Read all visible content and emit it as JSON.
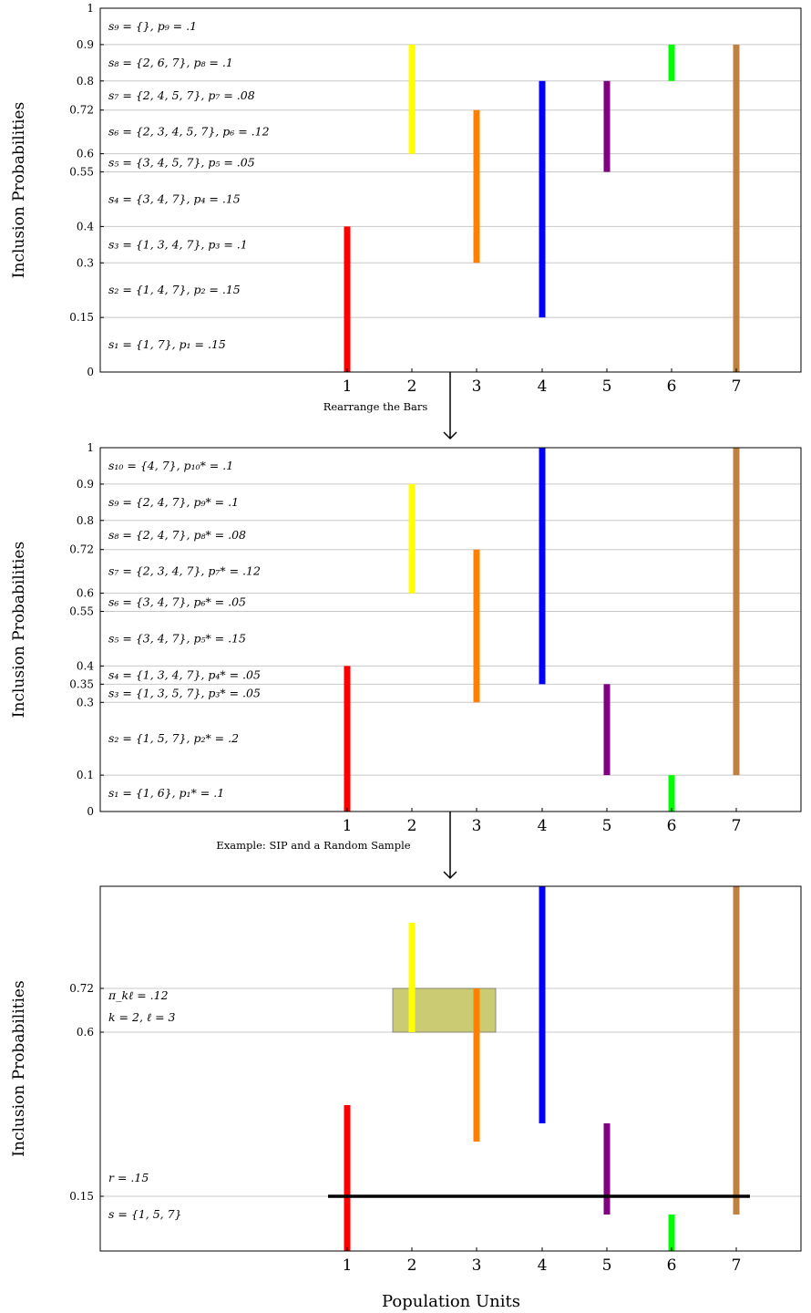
{
  "chart_data": [
    {
      "type": "bar",
      "ylabel": "Inclusion Probabilities",
      "ylim": [
        0,
        1
      ],
      "yticks": [
        0,
        0.15,
        0.3,
        0.4,
        0.55,
        0.6,
        0.72,
        0.8,
        0.9,
        1
      ],
      "ytick_labels": [
        "0",
        "0.15",
        "0.3",
        "0.4",
        "0.55",
        "0.6",
        "0.72",
        "0.8",
        "0.9",
        "1"
      ],
      "categories": [
        "1",
        "2",
        "3",
        "4",
        "5",
        "6",
        "7"
      ],
      "bars": [
        {
          "unit": "1",
          "low": 0,
          "high": 0.4,
          "color": "#ff0000"
        },
        {
          "unit": "2",
          "low": 0.6,
          "high": 0.9,
          "color": "#ffff00"
        },
        {
          "unit": "3",
          "low": 0.3,
          "high": 0.72,
          "color": "#ff8000"
        },
        {
          "unit": "4",
          "low": 0.15,
          "high": 0.8,
          "color": "#0000ff"
        },
        {
          "unit": "5",
          "low": 0.55,
          "high": 0.8,
          "color": "#800080"
        },
        {
          "unit": "6",
          "low": 0.8,
          "high": 0.9,
          "color": "#00ff00"
        },
        {
          "unit": "7",
          "low": 0,
          "high": 0.9,
          "color": "#bf8040"
        }
      ],
      "annotations": [
        {
          "y": 0.075,
          "text": "s₁ = {1, 7}, p₁ = .15"
        },
        {
          "y": 0.225,
          "text": "s₂ = {1, 4, 7}, p₂ = .15"
        },
        {
          "y": 0.35,
          "text": "s₃ = {1, 3, 4, 7}, p₃ = .1"
        },
        {
          "y": 0.475,
          "text": "s₄ = {3, 4, 7}, p₄ = .15"
        },
        {
          "y": 0.575,
          "text": "s₅ = {3, 4, 5, 7}, p₅ = .05"
        },
        {
          "y": 0.66,
          "text": "s₆ = {2, 3, 4, 5, 7}, p₆ = .12"
        },
        {
          "y": 0.76,
          "text": "s₇ = {2, 4, 5, 7}, p₇ = .08"
        },
        {
          "y": 0.85,
          "text": "s₈ = {2, 6, 7}, p₈ = .1"
        },
        {
          "y": 0.95,
          "text": "s₉ = {}, p₉ = .1"
        }
      ]
    },
    {
      "type": "bar",
      "ylabel": "Inclusion Probabilities",
      "ylim": [
        0,
        1
      ],
      "yticks": [
        0,
        0.1,
        0.3,
        0.35,
        0.4,
        0.55,
        0.6,
        0.72,
        0.8,
        0.9,
        1
      ],
      "ytick_labels": [
        "0",
        "0.1",
        "0.3",
        "0.35",
        "0.4",
        "0.55",
        "0.6",
        "0.72",
        "0.8",
        "0.9",
        "1"
      ],
      "categories": [
        "1",
        "2",
        "3",
        "4",
        "5",
        "6",
        "7"
      ],
      "bars": [
        {
          "unit": "1",
          "low": 0,
          "high": 0.4,
          "color": "#ff0000"
        },
        {
          "unit": "2",
          "low": 0.6,
          "high": 0.9,
          "color": "#ffff00"
        },
        {
          "unit": "3",
          "low": 0.3,
          "high": 0.72,
          "color": "#ff8000"
        },
        {
          "unit": "4",
          "low": 0.35,
          "high": 1,
          "color": "#0000ff"
        },
        {
          "unit": "5",
          "low": 0.1,
          "high": 0.35,
          "color": "#800080"
        },
        {
          "unit": "6",
          "low": 0,
          "high": 0.1,
          "color": "#00ff00"
        },
        {
          "unit": "7",
          "low": 0.1,
          "high": 1,
          "color": "#bf8040"
        }
      ],
      "annotations": [
        {
          "y": 0.05,
          "text": "s₁ = {1, 6}, p₁* = .1"
        },
        {
          "y": 0.2,
          "text": "s₂ = {1, 5, 7}, p₂* = .2"
        },
        {
          "y": 0.325,
          "text": "s₃ = {1, 3, 5, 7}, p₃* = .05"
        },
        {
          "y": 0.375,
          "text": "s₄ = {1, 3, 4, 7}, p₄* = .05"
        },
        {
          "y": 0.475,
          "text": "s₅ = {3, 4, 7}, p₅* = .15"
        },
        {
          "y": 0.575,
          "text": "s₆ = {3, 4, 7}, p₆* = .05"
        },
        {
          "y": 0.66,
          "text": "s₇ = {2, 3, 4, 7}, p₇* = .12"
        },
        {
          "y": 0.76,
          "text": "s₈ = {2, 4, 7}, p₈* = .08"
        },
        {
          "y": 0.85,
          "text": "s₉ = {2, 4, 7}, p₉* = .1"
        },
        {
          "y": 0.95,
          "text": "s₁₀ = {4, 7}, p₁₀* = .1"
        }
      ]
    },
    {
      "type": "bar",
      "ylabel": "Inclusion Probabilities",
      "xlabel": "Population Units",
      "ylim": [
        0,
        1
      ],
      "yticks": [
        0.15,
        0.6,
        0.72
      ],
      "ytick_labels": [
        "0.15",
        "0.6",
        "0.72"
      ],
      "categories": [
        "1",
        "2",
        "3",
        "4",
        "5",
        "6",
        "7"
      ],
      "bars": [
        {
          "unit": "1",
          "low": 0,
          "high": 0.4,
          "color": "#ff0000"
        },
        {
          "unit": "2",
          "low": 0.6,
          "high": 0.9,
          "color": "#ffff00"
        },
        {
          "unit": "3",
          "low": 0.3,
          "high": 0.72,
          "color": "#ff8000"
        },
        {
          "unit": "4",
          "low": 0.35,
          "high": 1,
          "color": "#0000ff"
        },
        {
          "unit": "5",
          "low": 0.1,
          "high": 0.35,
          "color": "#800080"
        },
        {
          "unit": "6",
          "low": 0,
          "high": 0.1,
          "color": "#00ff00"
        },
        {
          "unit": "7",
          "low": 0.1,
          "high": 1,
          "color": "#bf8040"
        }
      ],
      "highlight": {
        "x_from": "2",
        "x_to": "3",
        "y_low": 0.6,
        "y_high": 0.72,
        "color": "#a0a000"
      },
      "sample_line": {
        "y": 0.15
      },
      "annotations": [
        {
          "y": 0.7,
          "text": "π_kℓ = .12"
        },
        {
          "y": 0.64,
          "text": "k = 2, ℓ = 3"
        },
        {
          "y": 0.2,
          "text": "r = .15"
        },
        {
          "y": 0.1,
          "text": "s = {1, 5, 7}"
        }
      ]
    }
  ],
  "captions": {
    "first": "Rearrange the Bars",
    "second": "Example: SIP and a Random Sample"
  }
}
